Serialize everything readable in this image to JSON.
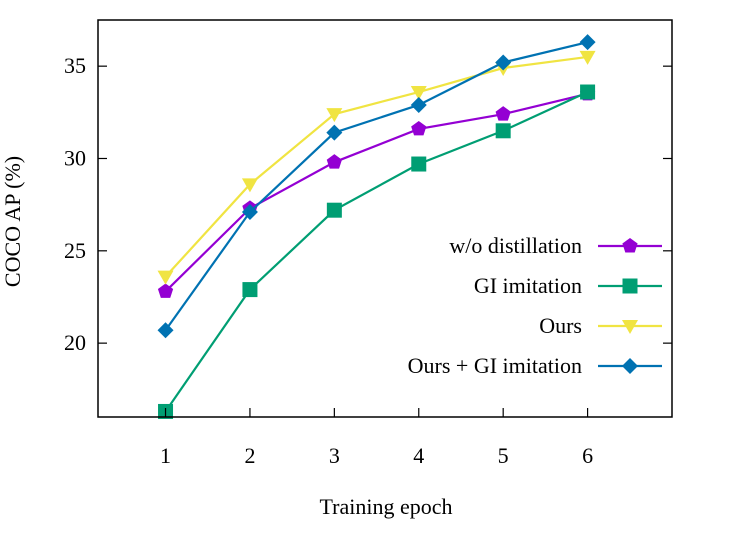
{
  "chart_data": {
    "type": "line",
    "title": "",
    "xlabel": "Training epoch",
    "ylabel": "COCO AP (%)",
    "x": [
      1,
      2,
      3,
      4,
      5,
      6
    ],
    "xlim": [
      0.2,
      7.0
    ],
    "ylim": [
      16.0,
      37.5
    ],
    "x_ticks": [
      1,
      2,
      3,
      4,
      5,
      6
    ],
    "y_ticks": [
      20,
      25,
      30,
      35
    ],
    "grid": false,
    "legend_position": "right",
    "series": [
      {
        "name": "w/o distillation",
        "marker": "pentagon",
        "color": "#9400d3",
        "values": [
          22.8,
          27.3,
          29.8,
          31.6,
          32.4,
          33.5
        ]
      },
      {
        "name": "GI imitation",
        "marker": "square",
        "color": "#009e73",
        "values": [
          16.3,
          22.9,
          27.2,
          29.7,
          31.5,
          33.6
        ]
      },
      {
        "name": "Ours",
        "marker": "triangle-down",
        "color": "#f0e442",
        "values": [
          23.6,
          28.6,
          32.4,
          33.6,
          34.9,
          35.5
        ]
      },
      {
        "name": "Ours + GI imitation",
        "marker": "diamond",
        "color": "#0072b2",
        "values": [
          20.7,
          27.1,
          31.4,
          32.9,
          35.2,
          36.3
        ]
      }
    ]
  }
}
